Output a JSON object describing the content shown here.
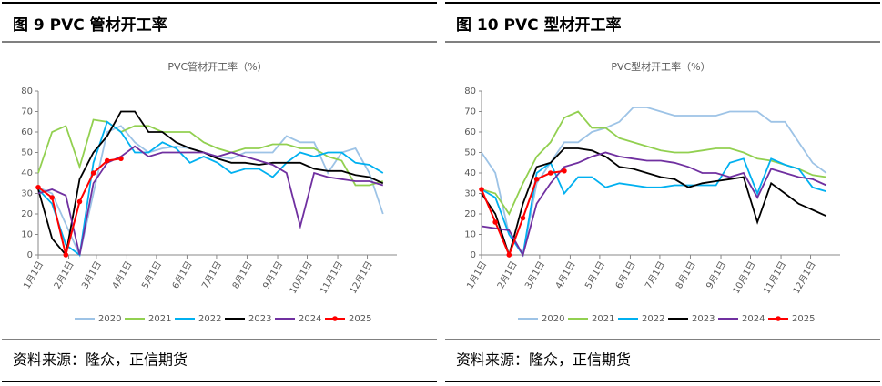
{
  "chart_data": [
    {
      "type": "line",
      "figure_title": "图 9 PVC 管材开工率",
      "title": "PVC管材开工率（%）",
      "source": "资料来源：隆众，正信期货",
      "x": [
        1,
        15,
        29,
        43,
        57,
        71,
        85,
        99,
        113,
        127,
        141,
        155,
        169,
        183,
        197,
        211,
        225,
        239,
        253,
        267,
        281,
        295,
        309,
        323,
        337,
        351
      ],
      "xlim": [
        1,
        365
      ],
      "xticks": [
        {
          "value": 1,
          "label": "1月1日"
        },
        {
          "value": 32,
          "label": "2月1日"
        },
        {
          "value": 60,
          "label": "3月1日"
        },
        {
          "value": 91,
          "label": "4月1日"
        },
        {
          "value": 121,
          "label": "5月1日"
        },
        {
          "value": 152,
          "label": "6月1日"
        },
        {
          "value": 182,
          "label": "7月1日"
        },
        {
          "value": 213,
          "label": "8月1日"
        },
        {
          "value": 244,
          "label": "9月1日"
        },
        {
          "value": 274,
          "label": "10月1日"
        },
        {
          "value": 305,
          "label": "11月1日"
        },
        {
          "value": 335,
          "label": "12月1日"
        }
      ],
      "ylim": [
        0,
        80
      ],
      "yticks": [
        0,
        10,
        20,
        30,
        40,
        50,
        60,
        70,
        80
      ],
      "series": [
        {
          "name": "2020",
          "color": "#9dc3e6",
          "values": [
            33,
            30,
            15,
            0,
            30,
            60,
            63,
            55,
            50,
            52,
            53,
            52,
            50,
            48,
            47,
            50,
            50,
            50,
            58,
            55,
            55,
            40,
            50,
            52,
            40,
            20
          ]
        },
        {
          "name": "2021",
          "color": "#92d050",
          "values": [
            40,
            60,
            63,
            43,
            66,
            65,
            60,
            63,
            63,
            60,
            60,
            60,
            55,
            52,
            50,
            52,
            52,
            54,
            54,
            52,
            52,
            48,
            46,
            34,
            34,
            36
          ]
        },
        {
          "name": "2022",
          "color": "#00b0f0",
          "values": [
            32,
            25,
            5,
            0,
            45,
            65,
            60,
            50,
            50,
            55,
            52,
            45,
            48,
            45,
            40,
            42,
            42,
            38,
            45,
            50,
            48,
            50,
            50,
            45,
            44,
            40
          ]
        },
        {
          "name": "2023",
          "color": "#000000",
          "values": [
            32,
            8,
            0,
            37,
            50,
            58,
            70,
            70,
            60,
            60,
            55,
            52,
            50,
            47,
            45,
            45,
            44,
            45,
            45,
            45,
            42,
            41,
            41,
            39,
            38,
            35
          ]
        },
        {
          "name": "2024",
          "color": "#7030a0",
          "values": [
            30,
            32,
            29,
            0,
            35,
            45,
            48,
            53,
            48,
            50,
            50,
            50,
            50,
            48,
            50,
            48,
            46,
            44,
            40,
            14,
            40,
            38,
            37,
            36,
            36,
            34
          ]
        },
        {
          "name": "2025",
          "color": "#ff0000",
          "marker": true,
          "values": [
            33,
            28,
            0,
            26,
            40,
            46,
            47,
            null,
            null,
            null,
            null,
            null,
            null,
            null,
            null,
            null,
            null,
            null,
            null,
            null,
            null,
            null,
            null,
            null,
            null,
            null
          ]
        }
      ]
    },
    {
      "type": "line",
      "figure_title": "图 10 PVC 型材开工率",
      "title": "PVC型材开工率（%）",
      "source": "资料来源：隆众，正信期货",
      "x": [
        1,
        15,
        29,
        43,
        57,
        71,
        85,
        99,
        113,
        127,
        141,
        155,
        169,
        183,
        197,
        211,
        225,
        239,
        253,
        267,
        281,
        295,
        309,
        323,
        337,
        351
      ],
      "xlim": [
        1,
        365
      ],
      "xticks": [
        {
          "value": 1,
          "label": "1月1日"
        },
        {
          "value": 32,
          "label": "2月1日"
        },
        {
          "value": 60,
          "label": "3月1日"
        },
        {
          "value": 91,
          "label": "4月1日"
        },
        {
          "value": 121,
          "label": "5月1日"
        },
        {
          "value": 152,
          "label": "6月1日"
        },
        {
          "value": 182,
          "label": "7月1日"
        },
        {
          "value": 213,
          "label": "8月1日"
        },
        {
          "value": 244,
          "label": "9月1日"
        },
        {
          "value": 274,
          "label": "10月1日"
        },
        {
          "value": 305,
          "label": "11月1日"
        },
        {
          "value": 335,
          "label": "12月1日"
        }
      ],
      "ylim": [
        0,
        80
      ],
      "yticks": [
        0,
        10,
        20,
        30,
        40,
        50,
        60,
        70,
        80
      ],
      "series": [
        {
          "name": "2020",
          "color": "#9dc3e6",
          "values": [
            50,
            40,
            10,
            0,
            35,
            45,
            55,
            55,
            60,
            62,
            65,
            72,
            72,
            70,
            68,
            68,
            68,
            68,
            70,
            70,
            70,
            65,
            65,
            55,
            45,
            40
          ]
        },
        {
          "name": "2021",
          "color": "#92d050",
          "values": [
            32,
            30,
            20,
            35,
            48,
            55,
            67,
            70,
            62,
            62,
            57,
            55,
            53,
            51,
            50,
            50,
            51,
            52,
            52,
            50,
            47,
            46,
            44,
            42,
            39,
            38
          ]
        },
        {
          "name": "2022",
          "color": "#00b0f0",
          "values": [
            32,
            28,
            10,
            0,
            40,
            45,
            30,
            38,
            38,
            33,
            35,
            34,
            33,
            33,
            34,
            34,
            34,
            34,
            45,
            47,
            30,
            47,
            44,
            42,
            33,
            31
          ]
        },
        {
          "name": "2023",
          "color": "#000000",
          "values": [
            30,
            20,
            0,
            25,
            43,
            45,
            52,
            52,
            51,
            48,
            43,
            42,
            40,
            38,
            37,
            33,
            35,
            36,
            37,
            38,
            16,
            35,
            30,
            25,
            22,
            19
          ]
        },
        {
          "name": "2024",
          "color": "#7030a0",
          "values": [
            14,
            13,
            12,
            0,
            25,
            35,
            43,
            45,
            48,
            50,
            48,
            47,
            46,
            46,
            45,
            43,
            40,
            40,
            38,
            40,
            28,
            42,
            40,
            38,
            37,
            34
          ]
        },
        {
          "name": "2025",
          "color": "#ff0000",
          "marker": true,
          "values": [
            32,
            16,
            0,
            18,
            37,
            40,
            41,
            null,
            null,
            null,
            null,
            null,
            null,
            null,
            null,
            null,
            null,
            null,
            null,
            null,
            null,
            null,
            null,
            null,
            null,
            null
          ]
        }
      ]
    }
  ]
}
